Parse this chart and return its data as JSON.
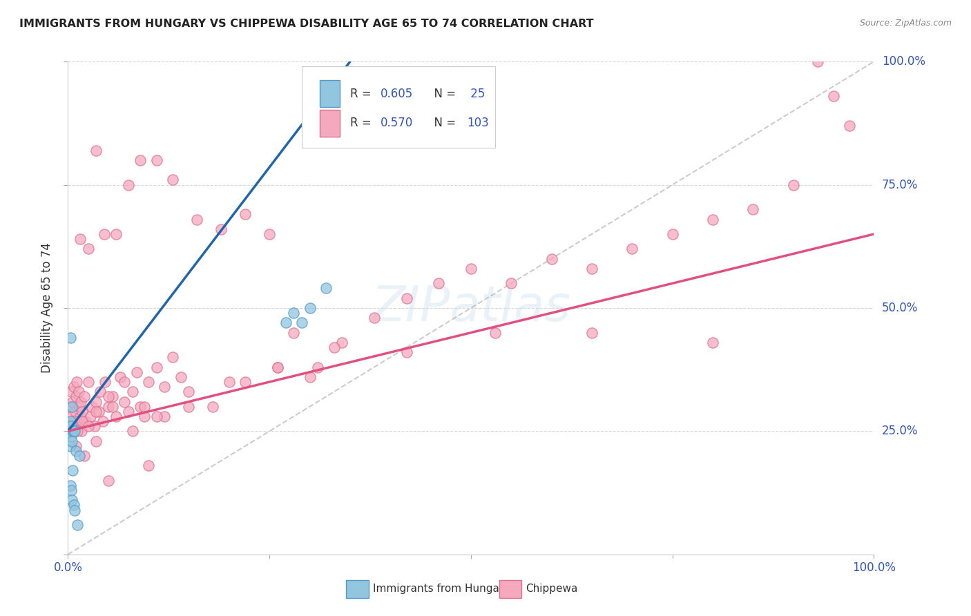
{
  "title": "IMMIGRANTS FROM HUNGARY VS CHIPPEWA DISABILITY AGE 65 TO 74 CORRELATION CHART",
  "source": "Source: ZipAtlas.com",
  "ylabel": "Disability Age 65 to 74",
  "xlim": [
    0,
    1
  ],
  "ylim": [
    0,
    1
  ],
  "xtick_vals": [
    0.0,
    0.25,
    0.5,
    0.75,
    1.0
  ],
  "ytick_vals": [
    0.0,
    0.25,
    0.5,
    0.75,
    1.0
  ],
  "xticklabels": [
    "0.0%",
    "",
    "",
    "",
    "100.0%"
  ],
  "yticklabels": [
    "",
    "",
    "",
    "",
    ""
  ],
  "right_ylabels": [
    "100.0%",
    "75.0%",
    "50.0%",
    "25.0%"
  ],
  "right_yticks": [
    1.0,
    0.75,
    0.5,
    0.25
  ],
  "blue_color": "#92c5de",
  "pink_color": "#f4a9be",
  "blue_line_color": "#2166ac",
  "pink_line_color": "#d6604d",
  "watermark": "ZIPatlas",
  "r1": 0.605,
  "n1": 25,
  "r2": 0.57,
  "n2": 103,
  "blue_line_x": [
    0.0,
    0.35
  ],
  "blue_line_y": [
    0.25,
    1.0
  ],
  "pink_line_x": [
    0.0,
    1.0
  ],
  "pink_line_y": [
    0.25,
    0.65
  ],
  "diag_line_x": [
    0.0,
    1.0
  ],
  "diag_line_y": [
    0.0,
    1.0
  ],
  "blue_x": [
    0.003,
    0.003,
    0.003,
    0.003,
    0.003,
    0.004,
    0.004,
    0.004,
    0.005,
    0.005,
    0.005,
    0.006,
    0.006,
    0.007,
    0.007,
    0.008,
    0.008,
    0.01,
    0.012,
    0.014,
    0.27,
    0.28,
    0.29,
    0.3,
    0.32
  ],
  "blue_y": [
    0.44,
    0.27,
    0.25,
    0.22,
    0.14,
    0.26,
    0.24,
    0.13,
    0.3,
    0.23,
    0.11,
    0.25,
    0.17,
    0.25,
    0.1,
    0.25,
    0.09,
    0.21,
    0.06,
    0.2,
    0.47,
    0.49,
    0.47,
    0.5,
    0.54
  ],
  "pink_x": [
    0.003,
    0.004,
    0.005,
    0.006,
    0.007,
    0.008,
    0.009,
    0.01,
    0.011,
    0.012,
    0.013,
    0.014,
    0.015,
    0.016,
    0.017,
    0.018,
    0.02,
    0.022,
    0.025,
    0.028,
    0.03,
    0.033,
    0.035,
    0.038,
    0.04,
    0.043,
    0.046,
    0.05,
    0.055,
    0.06,
    0.065,
    0.07,
    0.075,
    0.08,
    0.085,
    0.09,
    0.095,
    0.1,
    0.11,
    0.12,
    0.13,
    0.14,
    0.015,
    0.025,
    0.035,
    0.045,
    0.06,
    0.075,
    0.09,
    0.11,
    0.13,
    0.16,
    0.19,
    0.22,
    0.25,
    0.28,
    0.31,
    0.34,
    0.38,
    0.42,
    0.46,
    0.5,
    0.55,
    0.6,
    0.65,
    0.7,
    0.75,
    0.8,
    0.85,
    0.9,
    0.007,
    0.012,
    0.018,
    0.025,
    0.035,
    0.05,
    0.07,
    0.095,
    0.12,
    0.15,
    0.18,
    0.22,
    0.26,
    0.3,
    0.01,
    0.02,
    0.035,
    0.055,
    0.08,
    0.11,
    0.15,
    0.2,
    0.26,
    0.33,
    0.42,
    0.53,
    0.65,
    0.8,
    0.93,
    0.95,
    0.97,
    0.05,
    0.1
  ],
  "pink_y": [
    0.3,
    0.33,
    0.28,
    0.31,
    0.34,
    0.26,
    0.29,
    0.32,
    0.35,
    0.27,
    0.33,
    0.3,
    0.28,
    0.31,
    0.25,
    0.29,
    0.32,
    0.27,
    0.35,
    0.28,
    0.3,
    0.26,
    0.31,
    0.29,
    0.33,
    0.27,
    0.35,
    0.3,
    0.32,
    0.28,
    0.36,
    0.31,
    0.29,
    0.33,
    0.37,
    0.3,
    0.28,
    0.35,
    0.38,
    0.34,
    0.4,
    0.36,
    0.64,
    0.62,
    0.82,
    0.65,
    0.65,
    0.75,
    0.8,
    0.8,
    0.76,
    0.68,
    0.66,
    0.69,
    0.65,
    0.45,
    0.38,
    0.43,
    0.48,
    0.52,
    0.55,
    0.58,
    0.55,
    0.6,
    0.58,
    0.62,
    0.65,
    0.68,
    0.7,
    0.75,
    0.27,
    0.25,
    0.27,
    0.26,
    0.29,
    0.32,
    0.35,
    0.3,
    0.28,
    0.33,
    0.3,
    0.35,
    0.38,
    0.36,
    0.22,
    0.2,
    0.23,
    0.3,
    0.25,
    0.28,
    0.3,
    0.35,
    0.38,
    0.42,
    0.41,
    0.45,
    0.45,
    0.43,
    1.0,
    0.93,
    0.87,
    0.15,
    0.18
  ]
}
